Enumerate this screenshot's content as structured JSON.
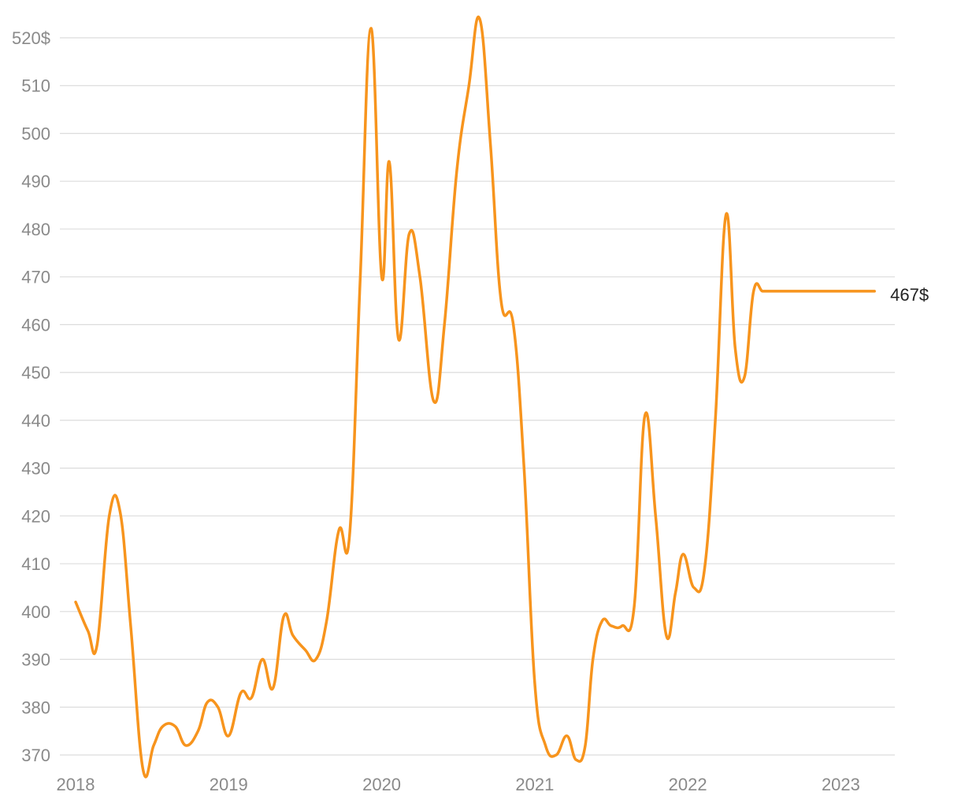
{
  "chart_data": {
    "type": "line",
    "title": "",
    "xlabel": "",
    "ylabel": "",
    "ylim": [
      370,
      520
    ],
    "xlim": [
      2018.0,
      2023.25
    ],
    "grid": true,
    "y_ticks": [
      370,
      380,
      390,
      400,
      410,
      420,
      430,
      440,
      450,
      460,
      470,
      480,
      490,
      500,
      510,
      520
    ],
    "y_tick_labels": [
      "370",
      "380",
      "390",
      "400",
      "410",
      "420",
      "430",
      "440",
      "450",
      "460",
      "470",
      "480",
      "490",
      "500",
      "510",
      "520$"
    ],
    "x_ticks": [
      2018,
      2019,
      2020,
      2021,
      2022,
      2023
    ],
    "x_tick_labels": [
      "2018",
      "2019",
      "2020",
      "2021",
      "2022",
      "2023"
    ],
    "end_label": "467$",
    "colors": {
      "line": "#f7941d",
      "grid": "#dcdcdc",
      "tick_text": "#8a8a8a",
      "end_label_text": "#222222"
    },
    "series": [
      {
        "x": [
          2018.0,
          2018.08,
          2018.14,
          2018.22,
          2018.29,
          2018.36,
          2018.44,
          2018.51,
          2018.57,
          2018.65,
          2018.72,
          2018.8,
          2018.86,
          2018.93,
          2019.0,
          2019.08,
          2019.15,
          2019.22,
          2019.29,
          2019.36,
          2019.42,
          2019.5,
          2019.57,
          2019.64,
          2019.72,
          2019.79,
          2019.86,
          2019.93,
          2020.0,
          2020.05,
          2020.11,
          2020.18,
          2020.25,
          2020.34,
          2020.41,
          2020.49,
          2020.57,
          2020.64,
          2020.71,
          2020.78,
          2020.86,
          2020.93,
          2021.0,
          2021.07,
          2021.14,
          2021.21,
          2021.27,
          2021.33,
          2021.38,
          2021.44,
          2021.5,
          2021.57,
          2021.65,
          2021.72,
          2021.79,
          2021.86,
          2021.92,
          2021.97,
          2022.04,
          2022.11,
          2022.18,
          2022.25,
          2022.31,
          2022.37,
          2022.43,
          2022.49,
          2022.55,
          2022.62,
          2022.68,
          2022.75,
          2022.81,
          2022.87,
          2022.93,
          2022.97,
          2023.03,
          2023.09,
          2023.15,
          2023.22
        ],
        "values": [
          402,
          396,
          393,
          420,
          421,
          397,
          367,
          372,
          376,
          376,
          372,
          375,
          381,
          380,
          374,
          383,
          382,
          390,
          384,
          399,
          395,
          392,
          390,
          398,
          417,
          416,
          470,
          522,
          470,
          494,
          457,
          479,
          470,
          444,
          460,
          492,
          510,
          524,
          498,
          465,
          460,
          430,
          385,
          372,
          370,
          374,
          369,
          372,
          390,
          398,
          397,
          397,
          401,
          441,
          420,
          395,
          404,
          412,
          405,
          409,
          440,
          483,
          455,
          449,
          467,
          467,
          467,
          467,
          467,
          467,
          467,
          467,
          467,
          467,
          467,
          467,
          467,
          467
        ]
      }
    ]
  }
}
